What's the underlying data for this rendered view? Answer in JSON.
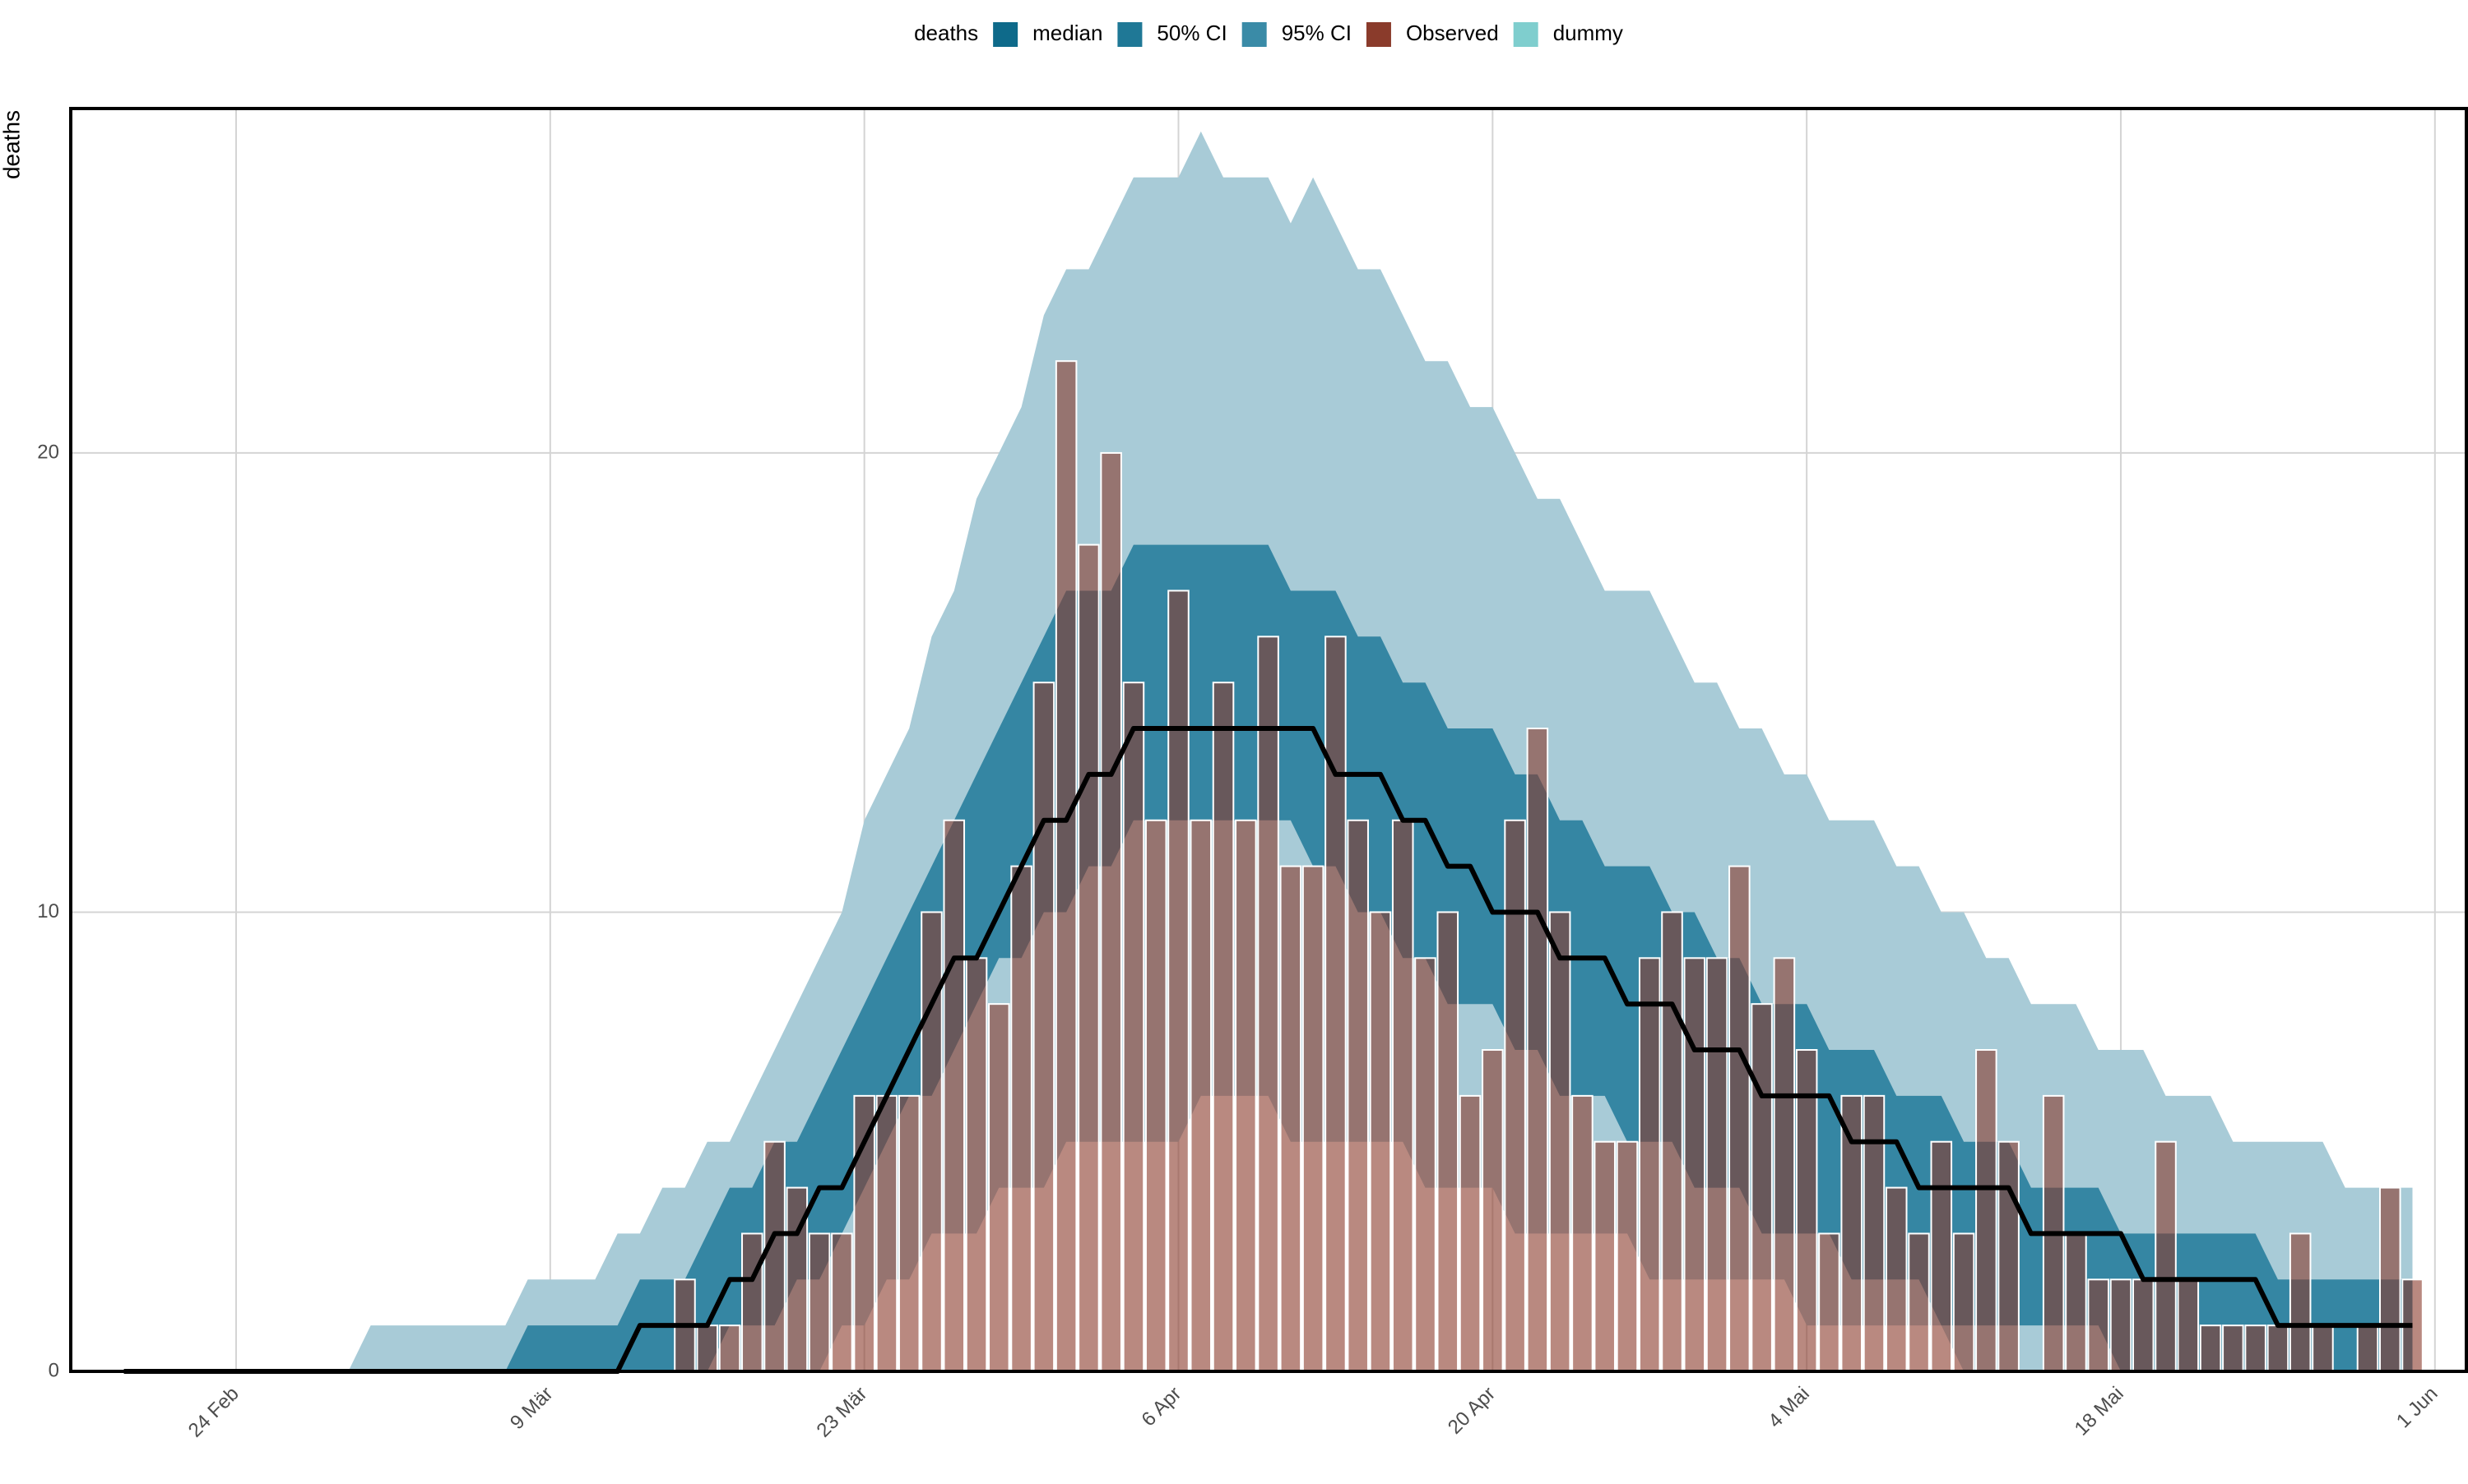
{
  "chart_data": {
    "type": "line",
    "legend_title": "deaths",
    "y_label": "deaths",
    "x": [
      "19 Feb",
      "20 Feb",
      "21 Feb",
      "22 Feb",
      "23 Feb",
      "24 Feb",
      "25 Feb",
      "26 Feb",
      "27 Feb",
      "28 Feb",
      "29 Feb",
      "1 Mär",
      "2 Mär",
      "3 Mär",
      "4 Mär",
      "5 Mär",
      "6 Mär",
      "7 Mär",
      "8 Mär",
      "9 Mär",
      "10 Mär",
      "11 Mär",
      "12 Mär",
      "13 Mär",
      "14 Mär",
      "15 Mär",
      "16 Mär",
      "17 Mär",
      "18 Mär",
      "19 Mär",
      "20 Mär",
      "21 Mär",
      "22 Mär",
      "23 Mär",
      "24 Mär",
      "25 Mär",
      "26 Mär",
      "27 Mär",
      "28 Mär",
      "29 Mär",
      "30 Mär",
      "31 Mär",
      "1 Apr",
      "2 Apr",
      "3 Apr",
      "4 Apr",
      "5 Apr",
      "6 Apr",
      "7 Apr",
      "8 Apr",
      "9 Apr",
      "10 Apr",
      "11 Apr",
      "12 Apr",
      "13 Apr",
      "14 Apr",
      "15 Apr",
      "16 Apr",
      "17 Apr",
      "18 Apr",
      "19 Apr",
      "20 Apr",
      "21 Apr",
      "22 Apr",
      "23 Apr",
      "24 Apr",
      "25 Apr",
      "26 Apr",
      "27 Apr",
      "28 Apr",
      "29 Apr",
      "30 Apr",
      "1 Mai",
      "2 Mai",
      "3 Mai",
      "4 Mai",
      "5 Mai",
      "6 Mai",
      "7 Mai",
      "8 Mai",
      "9 Mai",
      "10 Mai",
      "11 Mai",
      "12 Mai",
      "13 Mai",
      "14 Mai",
      "15 Mai",
      "16 Mai",
      "17 Mai",
      "18 Mai",
      "19 Mai",
      "20 Mai",
      "21 Mai",
      "22 Mai",
      "23 Mai",
      "24 Mai",
      "25 Mai",
      "26 Mai",
      "27 Mai",
      "28 Mai",
      "29 Mai",
      "30 Mai",
      "31 Mai",
      "1 Jun"
    ],
    "xticks": [
      "24 Feb",
      "9 Mär",
      "23 Mär",
      "6 Apr",
      "20 Apr",
      "4 Mai",
      "18 Mai",
      "1 Jun"
    ],
    "ylim": [
      0,
      27.5
    ],
    "yticks": [
      0,
      10,
      20
    ],
    "grid": true,
    "series": [
      {
        "name": "median",
        "type": "line",
        "color": "#0e6a8a",
        "line_color": "#000000",
        "values": [
          0,
          0,
          0,
          0,
          0,
          0,
          0,
          0,
          0,
          0,
          0,
          0,
          0,
          0,
          0,
          0,
          0,
          0,
          0,
          0,
          0,
          0,
          0,
          1,
          1,
          1,
          1,
          2,
          2,
          3,
          3,
          4,
          4,
          5,
          6,
          7,
          8,
          9,
          9,
          10,
          11,
          12,
          12,
          13,
          13,
          14,
          14,
          14,
          14,
          14,
          14,
          14,
          14,
          14,
          13,
          13,
          13,
          12,
          12,
          11,
          11,
          10,
          10,
          10,
          9,
          9,
          9,
          8,
          8,
          8,
          7,
          7,
          7,
          6,
          6,
          6,
          6,
          5,
          5,
          5,
          4,
          4,
          4,
          4,
          4,
          3,
          3,
          3,
          3,
          3,
          2,
          2,
          2,
          2,
          2,
          2,
          1,
          1,
          1,
          1,
          1,
          1,
          1,
          null
        ]
      },
      {
        "name": "50% CI",
        "type": "band",
        "color": "#1f7896",
        "fill": "#3586a3",
        "lower": [
          0,
          0,
          0,
          0,
          0,
          0,
          0,
          0,
          0,
          0,
          0,
          0,
          0,
          0,
          0,
          0,
          0,
          0,
          0,
          0,
          0,
          0,
          0,
          0,
          0,
          0,
          0,
          1,
          1,
          1,
          2,
          2,
          3,
          4,
          5,
          6,
          6,
          7,
          8,
          9,
          9,
          10,
          10,
          11,
          11,
          12,
          12,
          12,
          12,
          12,
          12,
          12,
          12,
          11,
          11,
          10,
          10,
          9,
          9,
          8,
          8,
          8,
          7,
          7,
          6,
          6,
          6,
          5,
          5,
          5,
          4,
          4,
          4,
          3,
          3,
          3,
          3,
          2,
          2,
          2,
          2,
          1,
          1,
          1,
          1,
          1,
          1,
          1,
          1,
          0,
          0,
          0,
          0,
          0,
          0,
          0,
          0,
          0,
          0,
          0,
          0,
          0,
          0,
          null
        ],
        "upper": [
          0,
          0,
          0,
          0,
          0,
          0,
          0,
          0,
          0,
          0,
          0,
          0,
          0,
          0,
          0,
          0,
          0,
          0,
          1,
          1,
          1,
          1,
          1,
          2,
          2,
          2,
          3,
          4,
          4,
          5,
          5,
          6,
          7,
          8,
          9,
          10,
          11,
          12,
          13,
          14,
          15,
          16,
          17,
          17,
          17,
          18,
          18,
          18,
          18,
          18,
          18,
          18,
          17,
          17,
          17,
          16,
          16,
          15,
          15,
          14,
          14,
          14,
          13,
          13,
          12,
          12,
          11,
          11,
          11,
          10,
          10,
          9,
          9,
          8,
          8,
          8,
          7,
          7,
          7,
          6,
          6,
          6,
          5,
          5,
          5,
          4,
          4,
          4,
          4,
          3,
          3,
          3,
          3,
          3,
          3,
          3,
          2,
          2,
          2,
          2,
          2,
          2,
          2,
          null
        ]
      },
      {
        "name": "95% CI",
        "type": "band",
        "color": "#3a8ba7",
        "fill": "#a8cbd7",
        "lower": [
          0,
          0,
          0,
          0,
          0,
          0,
          0,
          0,
          0,
          0,
          0,
          0,
          0,
          0,
          0,
          0,
          0,
          0,
          0,
          0,
          0,
          0,
          0,
          0,
          0,
          0,
          0,
          0,
          0,
          0,
          0,
          0,
          1,
          1,
          2,
          2,
          3,
          3,
          3,
          4,
          4,
          4,
          5,
          5,
          5,
          5,
          5,
          5,
          6,
          6,
          6,
          6,
          5,
          5,
          5,
          5,
          5,
          5,
          4,
          4,
          4,
          4,
          3,
          3,
          3,
          3,
          3,
          3,
          2,
          2,
          2,
          2,
          2,
          2,
          2,
          1,
          1,
          1,
          1,
          1,
          1,
          1,
          0,
          0,
          0,
          0,
          0,
          0,
          0,
          0,
          0,
          0,
          0,
          0,
          0,
          0,
          0,
          0,
          0,
          0,
          0,
          0,
          0,
          null
        ],
        "upper": [
          0,
          0,
          0,
          0,
          0,
          0,
          0,
          0,
          0,
          0,
          0,
          1,
          1,
          1,
          1,
          1,
          1,
          1,
          2,
          2,
          2,
          2,
          3,
          3,
          4,
          4,
          5,
          5,
          6,
          7,
          8,
          9,
          10,
          12,
          13,
          14,
          16,
          17,
          19,
          20,
          21,
          23,
          24,
          24,
          25,
          26,
          26,
          26,
          27,
          26,
          26,
          26,
          25,
          26,
          25,
          24,
          24,
          23,
          22,
          22,
          21,
          21,
          20,
          19,
          19,
          18,
          17,
          17,
          17,
          16,
          15,
          15,
          14,
          14,
          13,
          13,
          12,
          12,
          12,
          11,
          11,
          10,
          10,
          9,
          9,
          8,
          8,
          8,
          7,
          7,
          7,
          6,
          6,
          6,
          5,
          5,
          5,
          5,
          5,
          4,
          4,
          4,
          4,
          null
        ]
      },
      {
        "name": "Observed",
        "type": "bar",
        "color": "#8a3b2b",
        "opacity": 0.6,
        "values": [
          0,
          0,
          0,
          0,
          0,
          0,
          0,
          0,
          0,
          0,
          0,
          0,
          0,
          0,
          0,
          0,
          0,
          0,
          0,
          0,
          0,
          0,
          0,
          0,
          0,
          2,
          1,
          1,
          3,
          5,
          4,
          3,
          3,
          6,
          6,
          6,
          10,
          12,
          9,
          8,
          11,
          15,
          22,
          18,
          20,
          15,
          12,
          17,
          12,
          15,
          12,
          16,
          11,
          11,
          16,
          12,
          10,
          12,
          9,
          10,
          6,
          7,
          12,
          14,
          10,
          6,
          5,
          5,
          9,
          10,
          9,
          9,
          11,
          8,
          9,
          7,
          3,
          6,
          6,
          4,
          3,
          5,
          3,
          7,
          5,
          0,
          6,
          3,
          2,
          2,
          2,
          5,
          2,
          1,
          1,
          1,
          1,
          3,
          1,
          0,
          1,
          4,
          2,
          null
        ]
      },
      {
        "name": "dummy",
        "color": "#7fcece"
      }
    ]
  }
}
